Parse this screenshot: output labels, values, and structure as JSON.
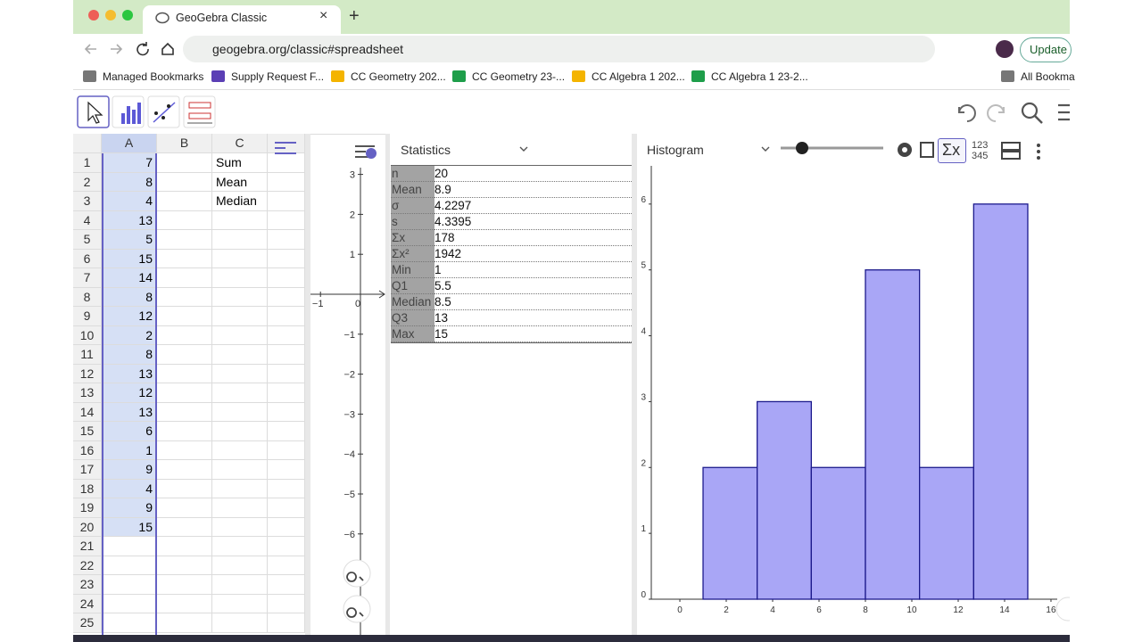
{
  "browser": {
    "tab_title": "GeoGebra Classic",
    "url": "geogebra.org/classic#spreadsheet",
    "update_button": "Update",
    "bookmarks": [
      "Managed Bookmarks",
      "Supply Request F...",
      "CC Geometry 202...",
      "CC Geometry 23-...",
      "CC Algebra 1 202...",
      "CC Algebra 1 23-2...",
      "All Bookma"
    ]
  },
  "spreadsheet": {
    "columns": [
      "A",
      "B",
      "C"
    ],
    "row_numbers": [
      "1",
      "2",
      "3",
      "4",
      "5",
      "6",
      "7",
      "8",
      "9",
      "10",
      "11",
      "12",
      "13",
      "14",
      "15",
      "16",
      "17",
      "18",
      "19",
      "20",
      "21",
      "22",
      "23",
      "24",
      "25"
    ],
    "column_a": [
      "7",
      "8",
      "4",
      "13",
      "5",
      "15",
      "14",
      "8",
      "12",
      "2",
      "8",
      "13",
      "12",
      "13",
      "6",
      "1",
      "9",
      "4",
      "9",
      "15"
    ],
    "column_c": [
      "Sum",
      "Mean",
      "Median"
    ]
  },
  "graphics": {
    "xticks": [
      {
        "value": -1,
        "label": "−1"
      },
      {
        "value": 0,
        "label": "0"
      }
    ],
    "yticks": [
      {
        "value": 3,
        "label": "3"
      },
      {
        "value": 2,
        "label": "2"
      },
      {
        "value": 1,
        "label": "1"
      },
      {
        "value": -1,
        "label": "−1"
      },
      {
        "value": -2,
        "label": "−2"
      },
      {
        "value": -3,
        "label": "−3"
      },
      {
        "value": -4,
        "label": "−4"
      },
      {
        "value": -5,
        "label": "−5"
      },
      {
        "value": -6,
        "label": "−6"
      }
    ]
  },
  "statistics": {
    "dropdown": "Statistics",
    "rows": [
      [
        "n",
        "20"
      ],
      [
        "Mean",
        "8.9"
      ],
      [
        "σ",
        "4.2297"
      ],
      [
        "s",
        "4.3395"
      ],
      [
        "Σx",
        "178"
      ],
      [
        "Σx²",
        "1942"
      ],
      [
        "Min",
        "1"
      ],
      [
        "Q1",
        "5.5"
      ],
      [
        "Median",
        "8.5"
      ],
      [
        "Q3",
        "13"
      ],
      [
        "Max",
        "15"
      ]
    ]
  },
  "histogram_panel": {
    "dropdown": "Histogram",
    "sigma_button": "Σx",
    "number_button": [
      "123",
      "345"
    ]
  },
  "chart_data": {
    "type": "histogram",
    "bins": [
      1,
      3.333,
      5.667,
      8,
      10.333,
      12.667,
      15
    ],
    "values": [
      2,
      3,
      2,
      5,
      2,
      6
    ],
    "color": "#a9a6f6",
    "edge_color": "#1c1a8c",
    "xlim": [
      -1.77,
      16.27
    ],
    "ylim": [
      0,
      6.58
    ],
    "xticks": [
      0,
      2,
      4,
      6,
      8,
      10,
      12,
      14,
      16
    ],
    "yticks": [
      0,
      1,
      2,
      3,
      4,
      5,
      6
    ]
  }
}
